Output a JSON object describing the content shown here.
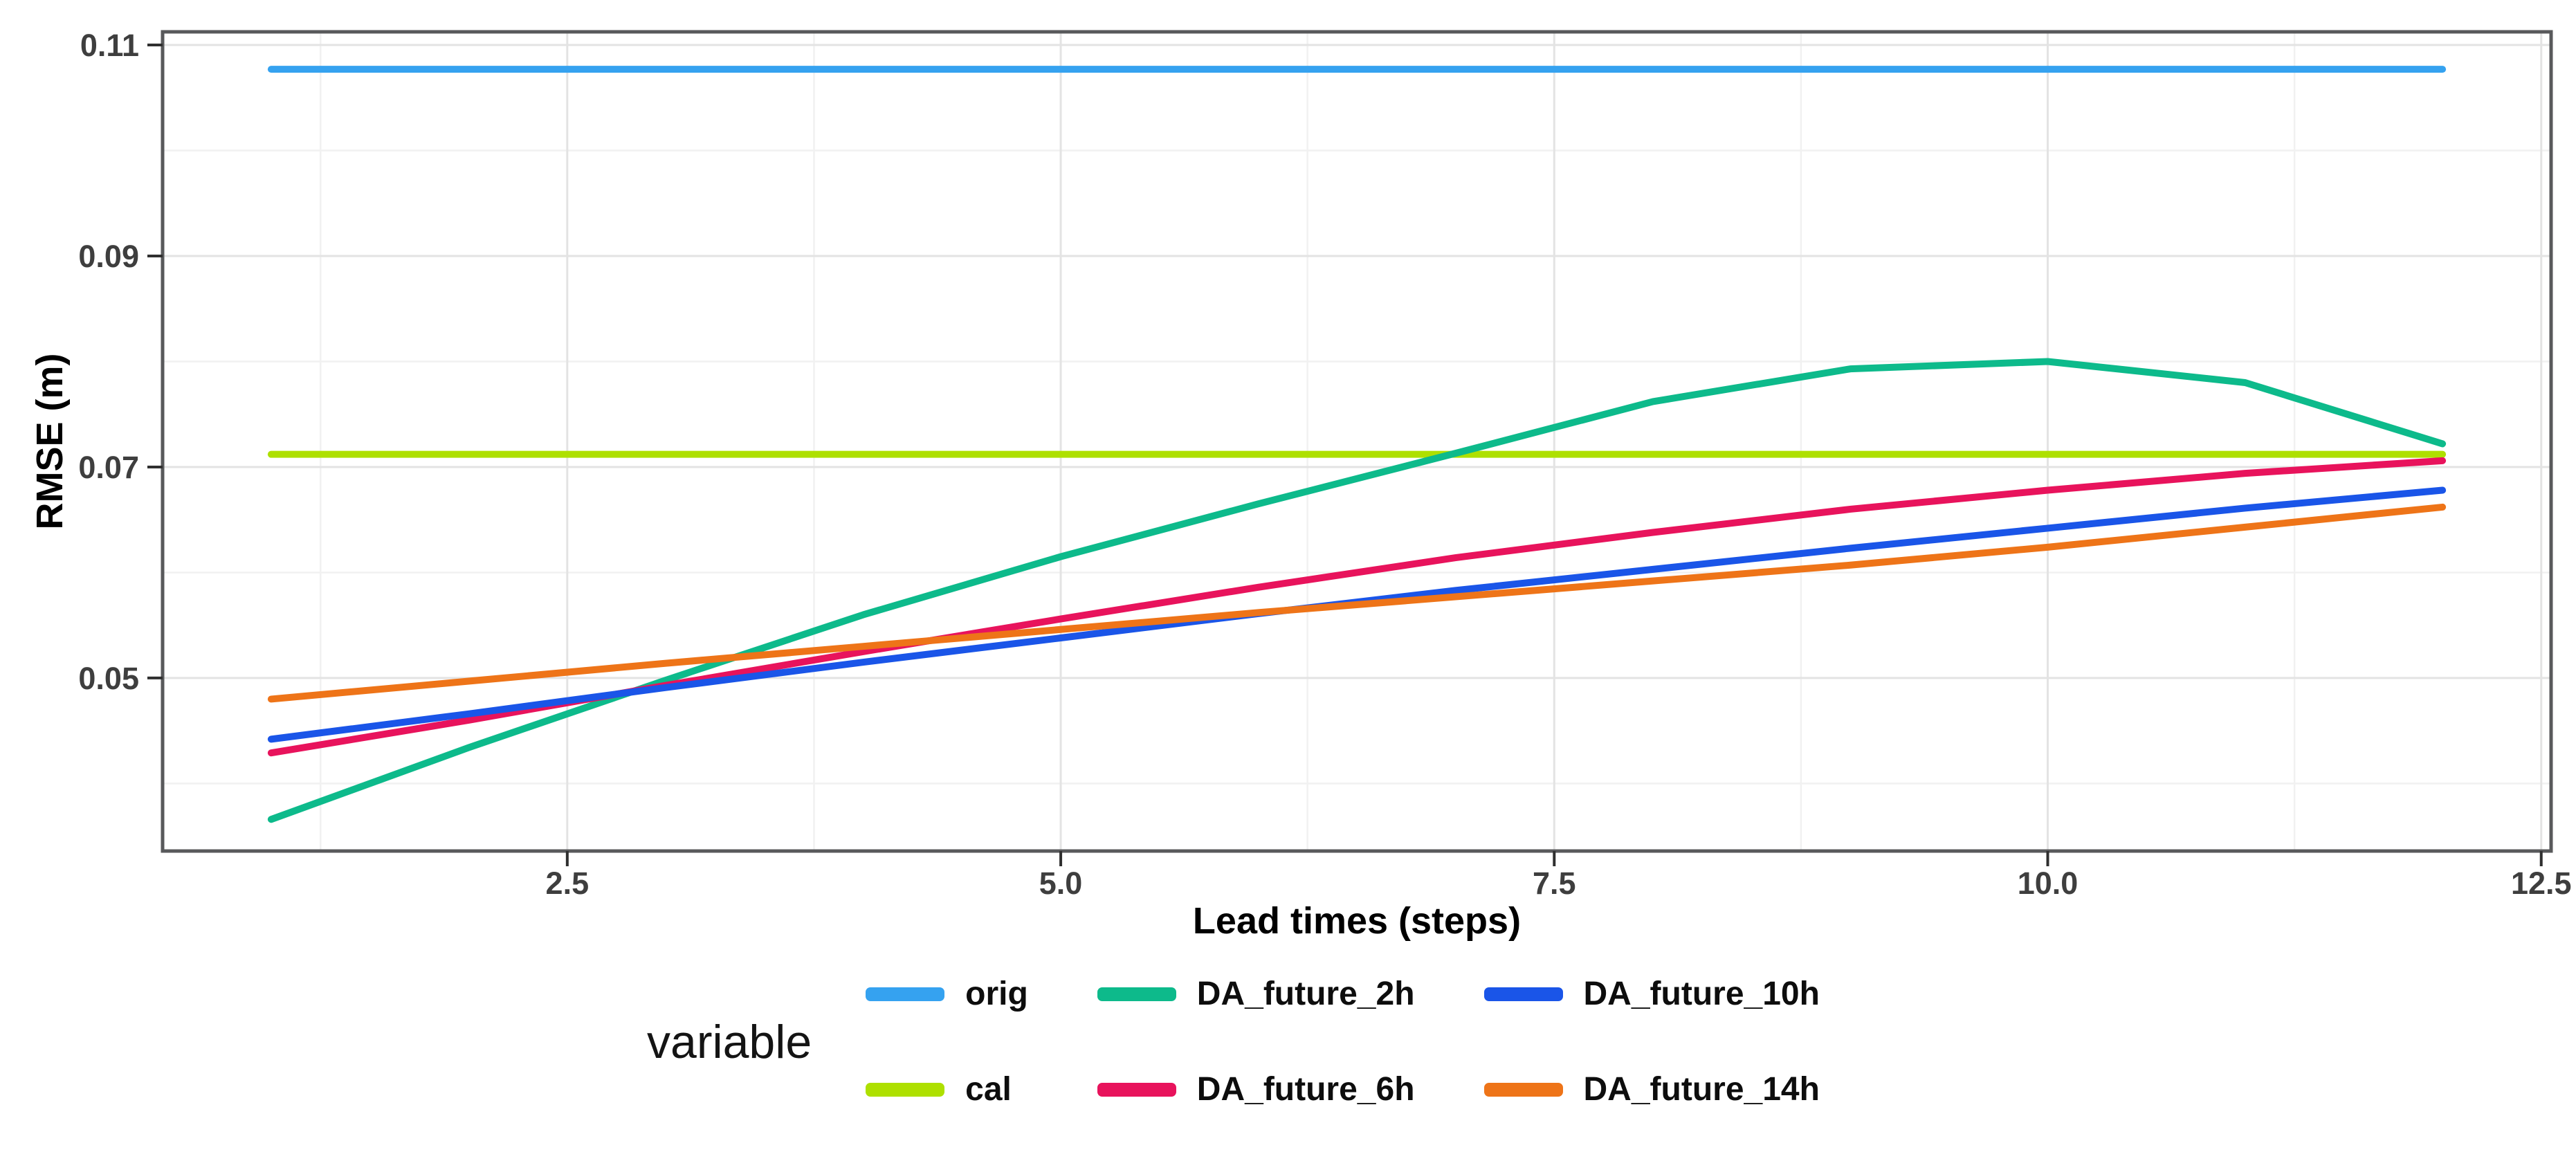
{
  "chart_data": {
    "type": "line",
    "title": "",
    "xlabel": "Lead times (steps)",
    "ylabel": "RMSE (m)",
    "legend_title": "variable",
    "legend_position": "bottom",
    "grid": true,
    "x": [
      1,
      2,
      3,
      4,
      5,
      6,
      7,
      8,
      9,
      10,
      11,
      12
    ],
    "x_axis": {
      "range": [
        0.45,
        12.55
      ],
      "major_ticks": [
        2.5,
        5.0,
        7.5,
        10.0,
        12.5
      ],
      "tick_labels": [
        "2.5",
        "5.0",
        "7.5",
        "10.0",
        "12.5"
      ],
      "minor_ticks": [
        1.25,
        3.75,
        6.25,
        8.75,
        11.25
      ]
    },
    "y_axis": {
      "range": [
        0.0336,
        0.11125
      ],
      "major_ticks": [
        0.05,
        0.07,
        0.09,
        0.11
      ],
      "tick_labels": [
        "0.05",
        "0.07",
        "0.09",
        "0.11"
      ],
      "minor_ticks": [
        0.04,
        0.06,
        0.08,
        0.1
      ]
    },
    "series": [
      {
        "name": "orig",
        "color": "#35A2F0",
        "values": [
          0.1077,
          0.1077,
          0.1077,
          0.1077,
          0.1077,
          0.1077,
          0.1077,
          0.1077,
          0.1077,
          0.1077,
          0.1077,
          0.1077
        ]
      },
      {
        "name": "cal",
        "color": "#AEE000",
        "values": [
          0.0712,
          0.0712,
          0.0712,
          0.0712,
          0.0712,
          0.0712,
          0.0712,
          0.0712,
          0.0712,
          0.0712,
          0.0712,
          0.0712
        ]
      },
      {
        "name": "DA_future_2h",
        "color": "#0DBA8B",
        "values": [
          0.0366,
          0.0434,
          0.0498,
          0.056,
          0.0615,
          0.0665,
          0.0713,
          0.0762,
          0.0793,
          0.08,
          0.078,
          0.0722
        ]
      },
      {
        "name": "DA_future_6h",
        "color": "#E8135C",
        "values": [
          0.0429,
          0.046,
          0.0493,
          0.0525,
          0.0556,
          0.0586,
          0.0614,
          0.0638,
          0.066,
          0.0678,
          0.0694,
          0.0706
        ]
      },
      {
        "name": "DA_future_10h",
        "color": "#1A55E8",
        "values": [
          0.0442,
          0.0466,
          0.0491,
          0.0515,
          0.0538,
          0.0561,
          0.0583,
          0.0603,
          0.0623,
          0.0642,
          0.0661,
          0.0678
        ]
      },
      {
        "name": "DA_future_14h",
        "color": "#EE7418",
        "values": [
          0.048,
          0.0497,
          0.0514,
          0.053,
          0.0546,
          0.0562,
          0.0577,
          0.0592,
          0.0607,
          0.0624,
          0.0643,
          0.0662
        ]
      }
    ]
  },
  "style": {
    "background": "#ffffff",
    "panel_border": "#58595B",
    "grid_major": "#E3E3E3",
    "grid_minor": "#F1F1F1",
    "tick_mark": "#2F2F2F",
    "tick_label_color": "#3E3E3E",
    "line_width": 10
  }
}
